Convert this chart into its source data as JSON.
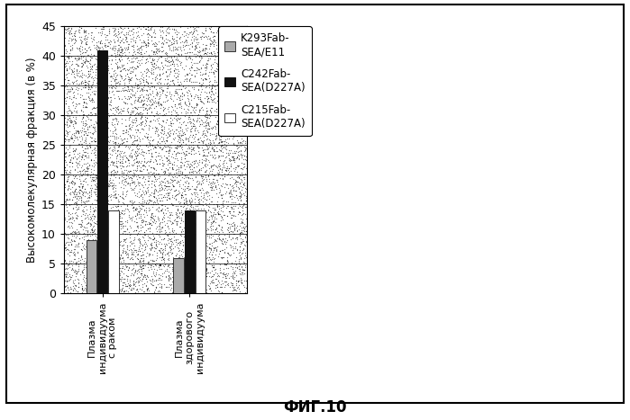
{
  "categories": [
    "Плазма\nиндивидуума\nс раком",
    "Плазма\nздорового\nиндивидуума"
  ],
  "series": [
    {
      "label": "K293Fab-\nSEA/E11",
      "values": [
        9,
        6
      ],
      "color": "#aaaaaa",
      "edgecolor": "#333333"
    },
    {
      "label": "C242Fab-\nSEA(D227A)",
      "values": [
        41,
        14
      ],
      "color": "#111111",
      "edgecolor": "#111111"
    },
    {
      "label": "C215Fab-\nSEA(D227A)",
      "values": [
        14,
        14
      ],
      "color": "#ffffff",
      "edgecolor": "#333333"
    }
  ],
  "ylabel": "Высокомолекулярная фракция (в %)",
  "ylim": [
    0,
    45
  ],
  "yticks": [
    0,
    5,
    10,
    15,
    20,
    25,
    30,
    35,
    40,
    45
  ],
  "xlabel_bottom": "ФИГ.10",
  "background_color": "#ffffff",
  "bar_width": 0.06,
  "group_positions": [
    0.22,
    0.72
  ],
  "xlim": [
    0.0,
    1.05
  ]
}
